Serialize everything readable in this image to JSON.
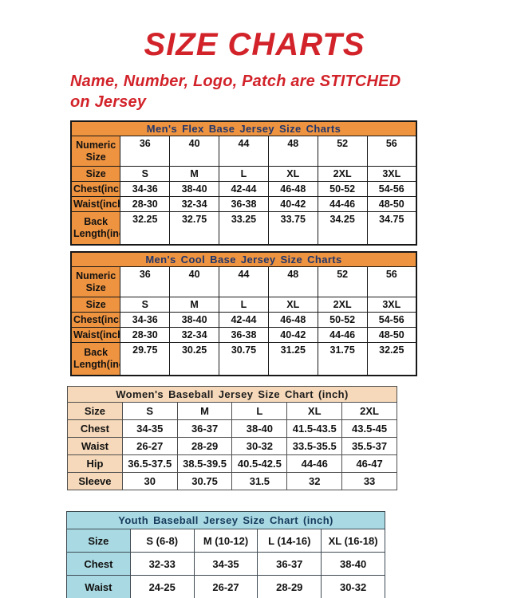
{
  "page": {
    "title": "SIZE CHARTS",
    "subtitle": "Name, Number, Logo, Patch are STITCHED\non Jersey",
    "accent_red": "#d2232a",
    "orange": "#ee9340",
    "peach": "#f6d9ba",
    "light_blue": "#a9dae3",
    "navy_title": "#21366b"
  },
  "tables": [
    {
      "key": "mens-flex-base",
      "title": "Men's Flex Base Jersey Size Charts",
      "theme": "t-orange",
      "row_classes": [
        "r-tall",
        "r-slim",
        "r-slim",
        "r-slim",
        "r-tall2"
      ],
      "rows": [
        {
          "label": "Numeric Size",
          "values": [
            "36",
            "40",
            "44",
            "48",
            "52",
            "56"
          ]
        },
        {
          "label": "Size",
          "values": [
            "S",
            "M",
            "L",
            "XL",
            "2XL",
            "3XL"
          ]
        },
        {
          "label": "Chest(inch)",
          "values": [
            "34-36",
            "38-40",
            "42-44",
            "46-48",
            "50-52",
            "54-56"
          ]
        },
        {
          "label": "Waist(inch)",
          "values": [
            "28-30",
            "32-34",
            "36-38",
            "40-42",
            "44-46",
            "48-50"
          ]
        },
        {
          "label": "Back Length(inch)",
          "values": [
            "32.25",
            "32.75",
            "33.25",
            "33.75",
            "34.25",
            "34.75"
          ]
        }
      ]
    },
    {
      "key": "mens-cool-base",
      "title": "Men's Cool Base Jersey Size Charts",
      "theme": "t-orange",
      "row_classes": [
        "r-tall",
        "r-slim",
        "r-slim",
        "r-slim",
        "r-tall2"
      ],
      "rows": [
        {
          "label": "Numeric Size",
          "values": [
            "36",
            "40",
            "44",
            "48",
            "52",
            "56"
          ]
        },
        {
          "label": "Size",
          "values": [
            "S",
            "M",
            "L",
            "XL",
            "2XL",
            "3XL"
          ]
        },
        {
          "label": "Chest(inch)",
          "values": [
            "34-36",
            "38-40",
            "42-44",
            "46-48",
            "50-52",
            "54-56"
          ]
        },
        {
          "label": "Waist(inch)",
          "values": [
            "28-30",
            "32-34",
            "36-38",
            "40-42",
            "44-46",
            "48-50"
          ]
        },
        {
          "label": "Back Length(inch)",
          "values": [
            "29.75",
            "30.25",
            "30.75",
            "31.25",
            "31.75",
            "32.25"
          ]
        }
      ]
    },
    {
      "key": "womens-baseball",
      "title": "Women's Baseball Jersey Size Chart (inch)",
      "theme": "t-peach",
      "row_classes": [
        "",
        "",
        "",
        "",
        ""
      ],
      "rows": [
        {
          "label": "Size",
          "values": [
            "S",
            "M",
            "L",
            "XL",
            "2XL"
          ]
        },
        {
          "label": "Chest",
          "values": [
            "34-35",
            "36-37",
            "38-40",
            "41.5-43.5",
            "43.5-45"
          ]
        },
        {
          "label": "Waist",
          "values": [
            "26-27",
            "28-29",
            "30-32",
            "33.5-35.5",
            "35.5-37"
          ]
        },
        {
          "label": "Hip",
          "values": [
            "36.5-37.5",
            "38.5-39.5",
            "40.5-42.5",
            "44-46",
            "46-47"
          ]
        },
        {
          "label": "Sleeve",
          "values": [
            "30",
            "30.75",
            "31.5",
            "32",
            "33"
          ]
        }
      ]
    },
    {
      "key": "youth-baseball",
      "title": "Youth Baseball Jersey Size Chart (inch)",
      "theme": "t-blue",
      "row_classes": [
        "",
        "",
        ""
      ],
      "rows": [
        {
          "label": "Size",
          "values": [
            "S (6-8)",
            "M (10-12)",
            "L (14-16)",
            "XL (16-18)"
          ]
        },
        {
          "label": "Chest",
          "values": [
            "32-33",
            "34-35",
            "36-37",
            "38-40"
          ]
        },
        {
          "label": "Waist",
          "values": [
            "24-25",
            "26-27",
            "28-29",
            "30-32"
          ]
        }
      ]
    }
  ]
}
